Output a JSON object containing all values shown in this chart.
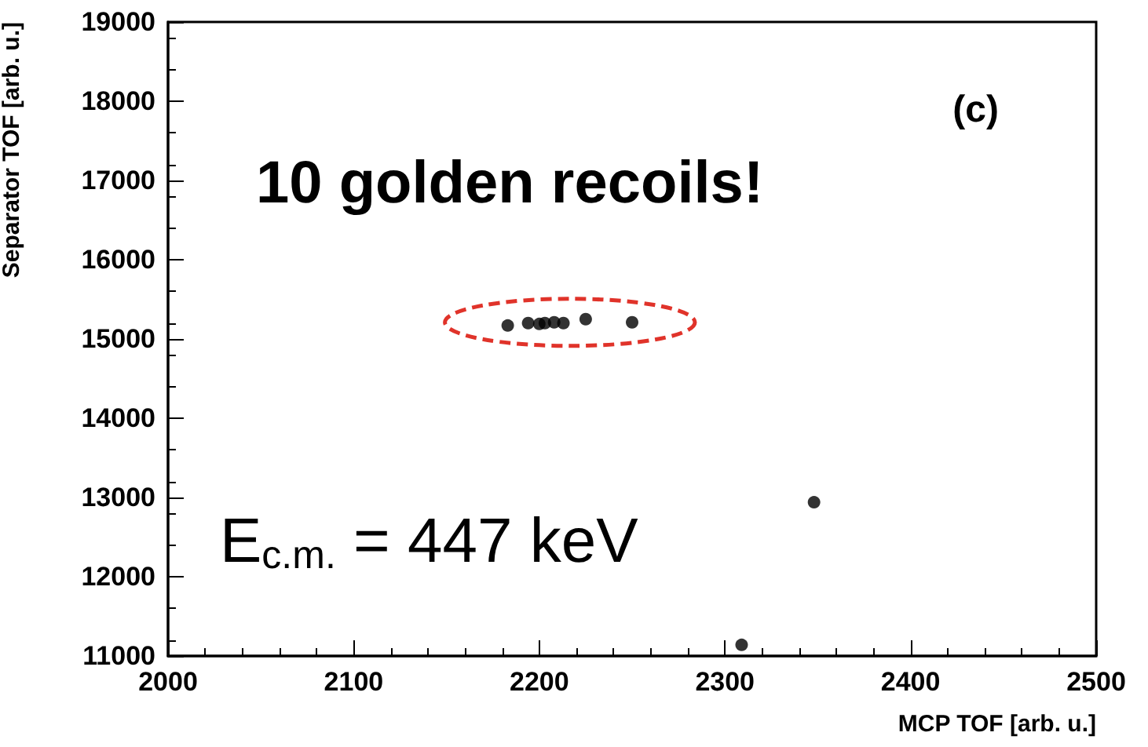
{
  "chart_data": {
    "type": "scatter",
    "xlabel": "MCP TOF [arb. u.]",
    "ylabel": "Separator TOF [arb. u.]",
    "annotations": [
      "(c)",
      "10 golden recoils!",
      "E$_{c.m.}$ = 447 keV"
    ],
    "series": [
      {
        "color": "#000000",
        "x": [
          2183,
          2194,
          2197,
          2199,
          2200,
          2203,
          2208,
          2213,
          2225,
          2250
        ],
        "values": [
          15170,
          15200,
          null,
          null,
          15190,
          15200,
          15210,
          15200,
          15250,
          15210
        ]
      },
      {
        "color": "#000000",
        "x": [
          2348,
          2309
        ],
        "values": [
          12940,
          11140
        ]
      }
    ],
    "xlim": [
      2000,
      2500
    ],
    "xticks": [
      2000,
      2100,
      2200,
      2300,
      2400,
      2500
    ],
    "ylim": [
      11000,
      19000
    ],
    "yticks": [
      11000,
      12000,
      13000,
      14000,
      15000,
      16000,
      17000,
      18000,
      19000
    ],
    "marker": "circle",
    "grid": false
  }
}
